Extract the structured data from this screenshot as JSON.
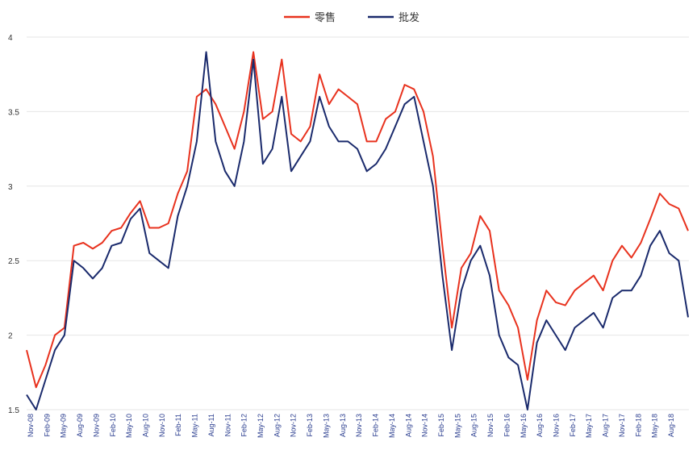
{
  "chart_data": {
    "type": "line",
    "title": "",
    "xlabel": "",
    "ylabel": "",
    "ylim": [
      1.5,
      4
    ],
    "yticks": [
      "1.5",
      "2",
      "2.5",
      "3",
      "3.5",
      "4"
    ],
    "grid": "horizontal",
    "legend_position": "top",
    "x_tick_labels": [
      "Nov-08",
      "Feb-09",
      "May-09",
      "Aug-09",
      "Nov-09",
      "Feb-10",
      "May-10",
      "Aug-10",
      "Nov-10",
      "Feb-11",
      "May-11",
      "Aug-11",
      "Nov-11",
      "Feb-12",
      "May-12",
      "Aug-12",
      "Nov-12",
      "Feb-13",
      "May-13",
      "Aug-13",
      "Nov-13",
      "Feb-14",
      "May-14",
      "Aug-14",
      "Nov-14",
      "Feb-15",
      "May-15",
      "Aug-15",
      "Nov-15",
      "Feb-16",
      "May-16",
      "Aug-16",
      "Nov-16",
      "Feb-17",
      "May-17",
      "Aug-17",
      "Nov-17",
      "Feb-18",
      "May-18",
      "Aug-18"
    ],
    "series": [
      {
        "name": "零售",
        "color": "#e8321e",
        "values": [
          1.9,
          1.65,
          1.8,
          2.0,
          2.05,
          2.6,
          2.62,
          2.58,
          2.62,
          2.7,
          2.72,
          2.82,
          2.9,
          2.72,
          2.72,
          2.75,
          2.95,
          3.1,
          3.6,
          3.65,
          3.55,
          3.4,
          3.25,
          3.5,
          3.9,
          3.45,
          3.5,
          3.85,
          3.35,
          3.3,
          3.4,
          3.75,
          3.55,
          3.65,
          3.6,
          3.55,
          3.3,
          3.3,
          3.45,
          3.5,
          3.68,
          3.65,
          3.5,
          3.2,
          2.6,
          2.05,
          2.45,
          2.55,
          2.8,
          2.7,
          2.3,
          2.2,
          2.05,
          1.7,
          2.1,
          2.3,
          2.22,
          2.2,
          2.3,
          2.35,
          2.4,
          2.3,
          2.5,
          2.6,
          2.52,
          2.62,
          2.78,
          2.95,
          2.88,
          2.85,
          2.7
        ]
      },
      {
        "name": "批发",
        "color": "#1a2a6c",
        "values": [
          1.6,
          1.5,
          1.7,
          1.9,
          2.0,
          2.5,
          2.45,
          2.38,
          2.45,
          2.6,
          2.62,
          2.78,
          2.85,
          2.55,
          2.5,
          2.45,
          2.8,
          3.0,
          3.3,
          3.9,
          3.3,
          3.1,
          3.0,
          3.3,
          3.85,
          3.15,
          3.25,
          3.6,
          3.1,
          3.2,
          3.3,
          3.6,
          3.4,
          3.3,
          3.3,
          3.25,
          3.1,
          3.15,
          3.25,
          3.4,
          3.55,
          3.6,
          3.3,
          3.0,
          2.4,
          1.9,
          2.3,
          2.5,
          2.6,
          2.4,
          2.0,
          1.85,
          1.8,
          1.5,
          1.95,
          2.1,
          2.0,
          1.9,
          2.05,
          2.1,
          2.15,
          2.05,
          2.25,
          2.3,
          2.3,
          2.4,
          2.6,
          2.7,
          2.55,
          2.5,
          2.12
        ]
      }
    ]
  }
}
